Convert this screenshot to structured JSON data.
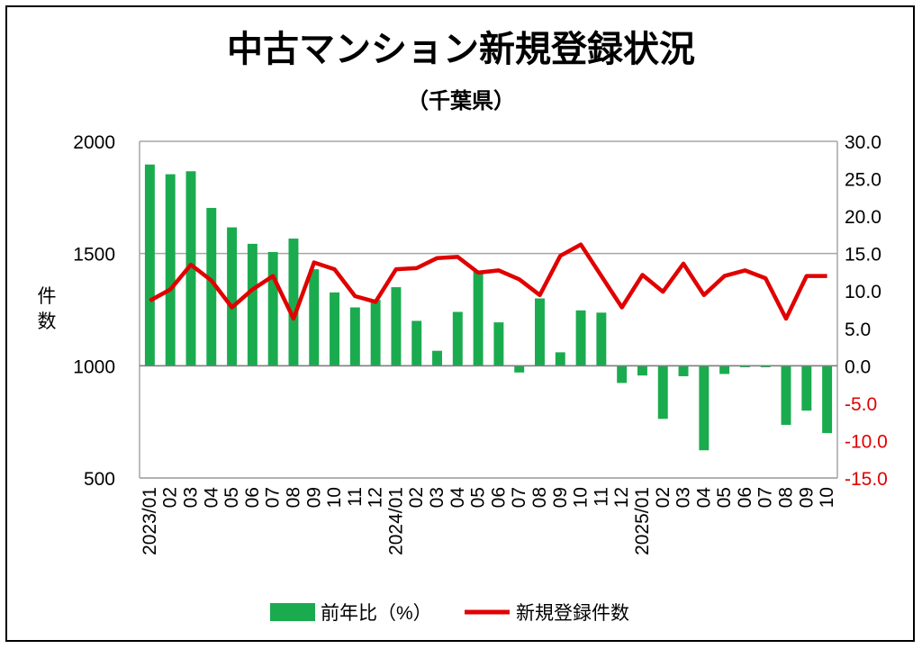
{
  "chart_data": {
    "type": "bar+line",
    "title": "中古マンション新規登録状況",
    "subtitle": "（千葉県）",
    "left_axis": {
      "label": "件数",
      "min": 500,
      "max": 2000,
      "ticks": [
        "2000",
        "1500",
        "1000",
        "500"
      ]
    },
    "right_axis": {
      "min": -15,
      "max": 30,
      "ticks": [
        "30.0",
        "25.0",
        "20.0",
        "15.0",
        "10.0",
        "5.0",
        "0.0",
        "-5.0",
        "-10.0",
        "-15.0"
      ],
      "negative_tick_color": "#e00000"
    },
    "x_labels": [
      "2023/01",
      "02",
      "03",
      "04",
      "05",
      "06",
      "07",
      "08",
      "09",
      "10",
      "11",
      "12",
      "2024/01",
      "02",
      "03",
      "04",
      "05",
      "06",
      "07",
      "08",
      "09",
      "10",
      "11",
      "12",
      "2025/01",
      "02",
      "03",
      "04",
      "05",
      "06",
      "07",
      "08",
      "09",
      "10"
    ],
    "series": [
      {
        "name": "前年比（%）",
        "type": "bar",
        "axis": "right",
        "color": "#1aab4f",
        "values": [
          26.9,
          25.6,
          26.0,
          21.1,
          18.5,
          16.3,
          15.2,
          17.0,
          12.9,
          9.8,
          7.8,
          8.8,
          10.5,
          6.0,
          2.0,
          7.2,
          12.6,
          5.8,
          -0.9,
          9.0,
          1.8,
          7.4,
          7.1,
          -2.3,
          -1.3,
          -7.1,
          -1.4,
          -11.3,
          -1.1,
          -0.2,
          -0.2,
          -7.9,
          -6.0,
          -9.0
        ]
      },
      {
        "name": "新規登録件数",
        "type": "line",
        "axis": "left",
        "color": "#e00000",
        "values": [
          1290,
          1340,
          1450,
          1380,
          1260,
          1340,
          1400,
          1210,
          1460,
          1430,
          1310,
          1285,
          1430,
          1435,
          1480,
          1485,
          1415,
          1425,
          1385,
          1315,
          1490,
          1540,
          1400,
          1260,
          1405,
          1330,
          1455,
          1315,
          1400,
          1425,
          1390,
          1210,
          1400,
          1400
        ]
      }
    ],
    "grid": "horizontal at left-axis ticks",
    "legend": "bottom-center"
  }
}
